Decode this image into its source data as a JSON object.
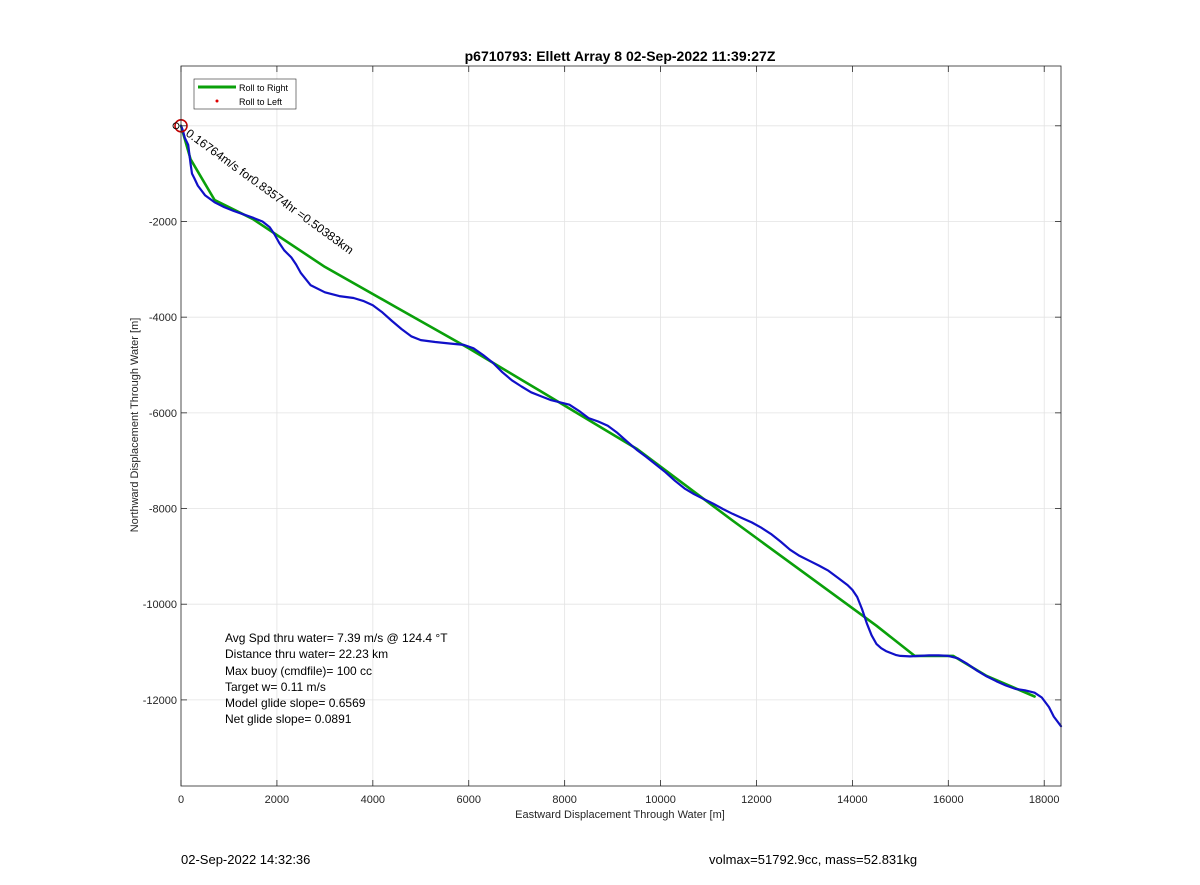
{
  "chart_data": {
    "type": "line",
    "title": "p6710793: Ellett Array 8 02-Sep-2022 11:39:27Z",
    "xlabel": "Eastward Displacement Through Water [m]",
    "ylabel": "Northward Displacement Through Water [m]",
    "xlim": [
      0,
      18350
    ],
    "ylim": [
      -13800,
      1250
    ],
    "grid": true,
    "x_ticks": [
      0,
      2000,
      4000,
      6000,
      8000,
      10000,
      12000,
      14000,
      16000,
      18000
    ],
    "x_tick_labels": [
      "0",
      "2000",
      "4000",
      "6000",
      "8000",
      "10000",
      "12000",
      "14000",
      "16000",
      "18000"
    ],
    "y_ticks": [
      0,
      -2000,
      -4000,
      -6000,
      -8000,
      -10000,
      -12000
    ],
    "y_tick_labels": [
      "",
      "-2000",
      "-4000",
      "-6000",
      "-8000",
      "-10000",
      "-12000"
    ],
    "legend_position": "top-left",
    "legend": [
      {
        "label": "Roll to Right",
        "color": "#0aa00a",
        "style": "line"
      },
      {
        "label": "Roll to Left",
        "color": "#e00000",
        "style": "dot"
      }
    ],
    "series": [
      {
        "name": "Roll to Right",
        "color": "#0aa00a",
        "x": [
          0,
          200,
          700,
          1500,
          3000,
          4500,
          6000,
          7500,
          8500,
          9500,
          10500,
          11500,
          13000,
          14500,
          15300,
          16100,
          16800,
          17800
        ],
        "y": [
          0,
          -700,
          -1550,
          -1950,
          -2950,
          -3800,
          -4650,
          -5550,
          -6150,
          -6750,
          -7500,
          -8250,
          -9350,
          -10450,
          -11080,
          -11080,
          -11500,
          -11930
        ]
      },
      {
        "color": "#1010c8",
        "x": [
          0,
          40,
          80,
          150,
          200,
          230,
          280,
          350,
          500,
          700,
          900,
          1100,
          1300,
          1500,
          1700,
          1850,
          1950,
          2050,
          2150,
          2200,
          2300,
          2400,
          2500,
          2700,
          3000,
          3300,
          3600,
          3800,
          4000,
          4200,
          4400,
          4600,
          4800,
          5000,
          5300,
          5600,
          5900,
          6100,
          6300,
          6500,
          6700,
          6900,
          7100,
          7300,
          7500,
          7700,
          7900,
          8100,
          8300,
          8500,
          8700,
          8900,
          9100,
          9300,
          9500,
          9700,
          9900,
          10100,
          10300,
          10500,
          10700,
          10900,
          11100,
          11300,
          11500,
          11700,
          11900,
          12100,
          12300,
          12500,
          12700,
          12900,
          13100,
          13300,
          13500,
          13700,
          13900,
          14000,
          14100,
          14200,
          14300,
          14400,
          14500,
          14600,
          14700,
          14800,
          14900,
          15000,
          15200,
          15400,
          15600,
          15800,
          16000,
          16200,
          16400,
          16600,
          16800,
          17000,
          17200,
          17400,
          17600,
          17800,
          17950,
          18100,
          18200,
          18350
        ],
        "y": [
          0,
          -100,
          -250,
          -400,
          -800,
          -1000,
          -1100,
          -1250,
          -1450,
          -1600,
          -1700,
          -1780,
          -1850,
          -1920,
          -2000,
          -2120,
          -2270,
          -2450,
          -2600,
          -2650,
          -2750,
          -2900,
          -3080,
          -3330,
          -3480,
          -3560,
          -3600,
          -3660,
          -3750,
          -3900,
          -4080,
          -4250,
          -4400,
          -4480,
          -4520,
          -4550,
          -4580,
          -4650,
          -4790,
          -4950,
          -5150,
          -5320,
          -5450,
          -5570,
          -5650,
          -5730,
          -5780,
          -5830,
          -5960,
          -6110,
          -6180,
          -6270,
          -6420,
          -6600,
          -6770,
          -6920,
          -7080,
          -7240,
          -7420,
          -7580,
          -7700,
          -7800,
          -7900,
          -8010,
          -8110,
          -8200,
          -8290,
          -8400,
          -8530,
          -8690,
          -8860,
          -8990,
          -9090,
          -9190,
          -9300,
          -9450,
          -9600,
          -9700,
          -9850,
          -10100,
          -10400,
          -10650,
          -10830,
          -10920,
          -10980,
          -11020,
          -11060,
          -11080,
          -11090,
          -11080,
          -11070,
          -11070,
          -11080,
          -11130,
          -11250,
          -11390,
          -11510,
          -11610,
          -11700,
          -11770,
          -11800,
          -11850,
          -11950,
          -12150,
          -12350,
          -12550
        ]
      }
    ],
    "markers": {
      "start_circle_color": "#c00000"
    },
    "annotations": {
      "track_label": "0.16764m/s for0.83574hr =0.50383km",
      "stats": [
        "Avg Spd thru water=  7.39 m/s @ 124.4 °T",
        "Distance thru water= 22.23 km",
        "Max buoy (cmdfile)= 100 cc",
        "Target w= 0.11 m/s",
        "Model glide slope= 0.6569",
        "Net glide slope= 0.0891"
      ]
    }
  },
  "footer": {
    "timestamp": "02-Sep-2022 14:32:36",
    "volmax_mass": "volmax=51792.9cc, mass=52.831kg"
  }
}
